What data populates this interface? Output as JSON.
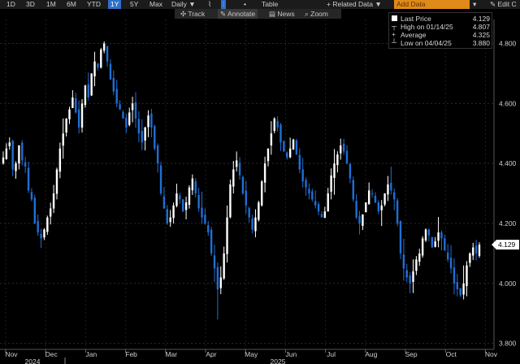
{
  "toolbar": {
    "ranges": [
      "1D",
      "3D",
      "1M",
      "6M",
      "YTD",
      "1Y",
      "5Y",
      "Max"
    ],
    "active_range": "1Y",
    "interval": "Daily",
    "interval_arrow": "▼",
    "table_label": "Table",
    "related_label": "+ Related Data",
    "related_arrow": "▼",
    "add_data_placeholder": "Add Data",
    "edit_label": "Edit C"
  },
  "subtoolbar": {
    "track_label": "Track",
    "annotate_label": "Annotate",
    "news_label": "News",
    "zoom_label": "Zoom"
  },
  "legend": {
    "last_price_label": "Last Price",
    "last_price_value": "4.129",
    "high_label": "High on 01/14/25",
    "high_value": "4.807",
    "average_label": "Average",
    "average_value": "4.325",
    "low_label": "Low on 04/04/25",
    "low_value": "3.880"
  },
  "colors": {
    "background": "#000000",
    "up_candle": "#ffffff",
    "down_candle": "#1f6fd6",
    "price_tag": "#ffffff",
    "add_data": "#e08a1a",
    "active_tab": "#2f6fc9"
  },
  "chart_data": {
    "type": "candlestick",
    "last_price": 4.129,
    "high": 4.807,
    "average": 4.325,
    "low": 3.88,
    "ylim": [
      3.78,
      4.88
    ],
    "y_ticks": [
      "4.800",
      "4.600",
      "4.400",
      "4.200",
      "4.000",
      "3.800"
    ],
    "y_tick_values": [
      4.8,
      4.6,
      4.4,
      4.2,
      4.0,
      3.8
    ],
    "x_month_labels": [
      "Nov",
      "Dec",
      "Jan",
      "Feb",
      "Mar",
      "Apr",
      "May",
      "Jun",
      "Jul",
      "Aug",
      "Sep",
      "Oct",
      "Nov"
    ],
    "x_year_labels": [
      "2024",
      "2025"
    ],
    "closes": [
      4.42,
      4.45,
      4.47,
      4.38,
      4.4,
      4.46,
      4.41,
      4.39,
      4.31,
      4.28,
      4.2,
      4.17,
      4.15,
      4.18,
      4.22,
      4.25,
      4.3,
      4.38,
      4.45,
      4.5,
      4.55,
      4.58,
      4.62,
      4.57,
      4.52,
      4.6,
      4.66,
      4.62,
      4.7,
      4.74,
      4.72,
      4.78,
      4.8,
      4.74,
      4.68,
      4.64,
      4.6,
      4.58,
      4.55,
      4.52,
      4.57,
      4.6,
      4.55,
      4.5,
      4.47,
      4.52,
      4.56,
      4.52,
      4.45,
      4.4,
      4.3,
      4.25,
      4.2,
      4.22,
      4.26,
      4.3,
      4.28,
      4.24,
      4.27,
      4.32,
      4.35,
      4.3,
      4.25,
      4.22,
      4.2,
      4.17,
      4.1,
      4.05,
      3.98,
      4.02,
      4.1,
      4.22,
      4.33,
      4.38,
      4.41,
      4.36,
      4.3,
      4.26,
      4.22,
      4.18,
      4.22,
      4.27,
      4.34,
      4.4,
      4.45,
      4.5,
      4.55,
      4.52,
      4.47,
      4.44,
      4.42,
      4.45,
      4.48,
      4.43,
      4.38,
      4.34,
      4.32,
      4.3,
      4.28,
      4.26,
      4.24,
      4.22,
      4.24,
      4.3,
      4.36,
      4.4,
      4.43,
      4.46,
      4.44,
      4.4,
      4.35,
      4.28,
      4.22,
      4.2,
      4.23,
      4.27,
      4.31,
      4.3,
      4.27,
      4.24,
      4.26,
      4.3,
      4.33,
      4.31,
      4.28,
      4.2,
      4.1,
      4.05,
      4.02,
      4.0,
      4.04,
      4.08,
      4.1,
      4.15,
      4.18,
      4.16,
      4.12,
      4.14,
      4.17,
      4.15,
      4.11,
      4.08,
      4.05,
      4.0,
      3.98,
      3.96,
      4.0,
      4.06,
      4.1,
      4.12,
      4.1,
      4.129
    ],
    "x_axis": "dates, Nov 2024 – Nov 2025",
    "grid": true
  }
}
